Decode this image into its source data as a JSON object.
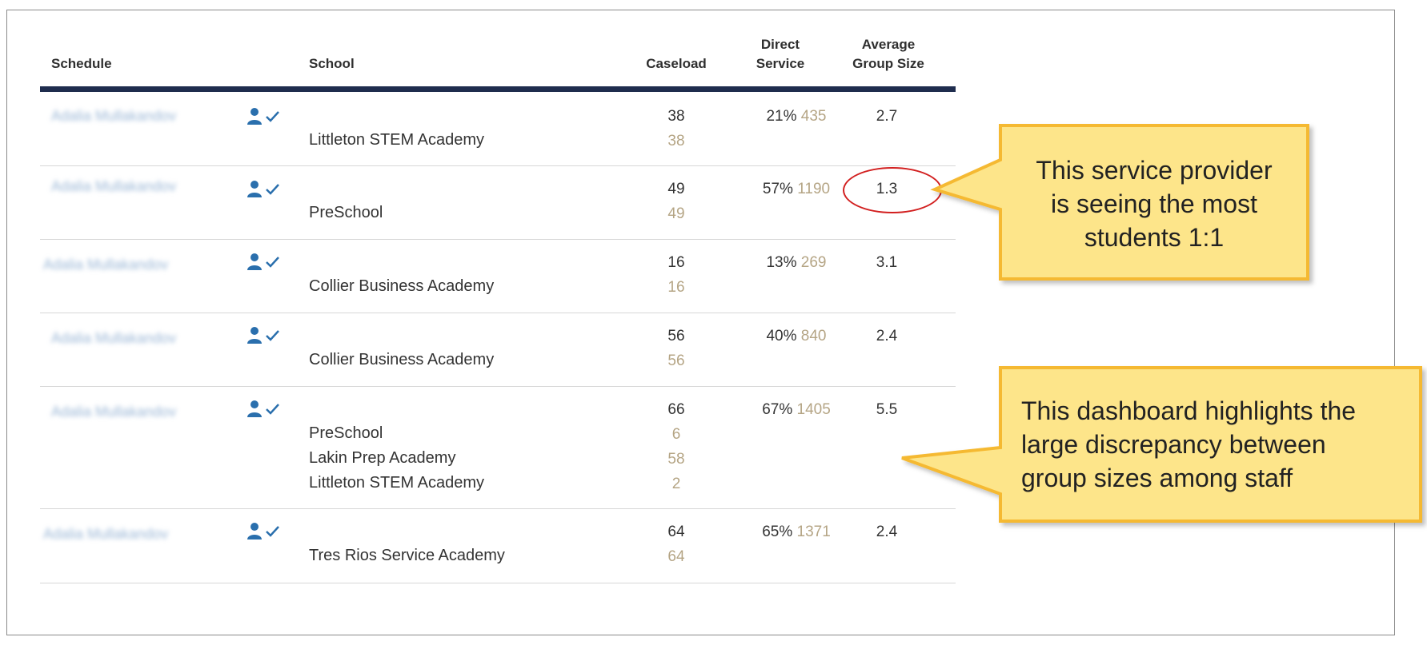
{
  "table": {
    "headers": {
      "schedule": "Schedule",
      "school": "School",
      "caseload": "Caseload",
      "direct_service_line1": "Direct",
      "direct_service_line2": "Service",
      "avg_group_line1": "Average",
      "avg_group_line2": "Group Size"
    },
    "rows": [
      {
        "provider": "Adalia Mullakandov",
        "schools": [
          "Littleton STEM Academy"
        ],
        "caseload_total": "38",
        "caseload_by_school": [
          "38"
        ],
        "direct_pct": "21%",
        "direct_minutes": "435",
        "avg_group_size": "2.7"
      },
      {
        "provider": "Adalia Mullakandov",
        "schools": [
          "PreSchool"
        ],
        "caseload_total": "49",
        "caseload_by_school": [
          "49"
        ],
        "direct_pct": "57%",
        "direct_minutes": "1190",
        "avg_group_size": "1.3"
      },
      {
        "provider": "Adalia Mullakandov",
        "schools": [
          "Collier Business Academy"
        ],
        "caseload_total": "16",
        "caseload_by_school": [
          "16"
        ],
        "direct_pct": "13%",
        "direct_minutes": "269",
        "avg_group_size": "3.1"
      },
      {
        "provider": "Adalia Mullakandov",
        "schools": [
          "Collier Business Academy"
        ],
        "caseload_total": "56",
        "caseload_by_school": [
          "56"
        ],
        "direct_pct": "40%",
        "direct_minutes": "840",
        "avg_group_size": "2.4"
      },
      {
        "provider": "Adalia Mullakandov",
        "schools": [
          "PreSchool",
          "Lakin Prep Academy",
          "Littleton STEM Academy"
        ],
        "caseload_total": "66",
        "caseload_by_school": [
          "6",
          "58",
          "2"
        ],
        "direct_pct": "67%",
        "direct_minutes": "1405",
        "avg_group_size": "5.5"
      },
      {
        "provider": "Adalia Mullakandov",
        "schools": [
          "Tres Rios Service Academy"
        ],
        "caseload_total": "64",
        "caseload_by_school": [
          "64"
        ],
        "direct_pct": "65%",
        "direct_minutes": "1371",
        "avg_group_size": "2.4"
      }
    ]
  },
  "callouts": {
    "top": [
      "This service provider",
      "is seeing the most",
      "students 1:1"
    ],
    "bottom": [
      "This dashboard highlights the",
      "large discrepancy between",
      "group sizes among staff"
    ]
  },
  "colors": {
    "header_rule": "#1f2d4e",
    "icon_blue": "#2a6fad",
    "sub_value": "#b5a585",
    "callout_fill": "#fde58a",
    "callout_border": "#f5b930",
    "highlight_ring": "#d21f1f"
  },
  "icons": {
    "provider": "person-check-icon"
  }
}
